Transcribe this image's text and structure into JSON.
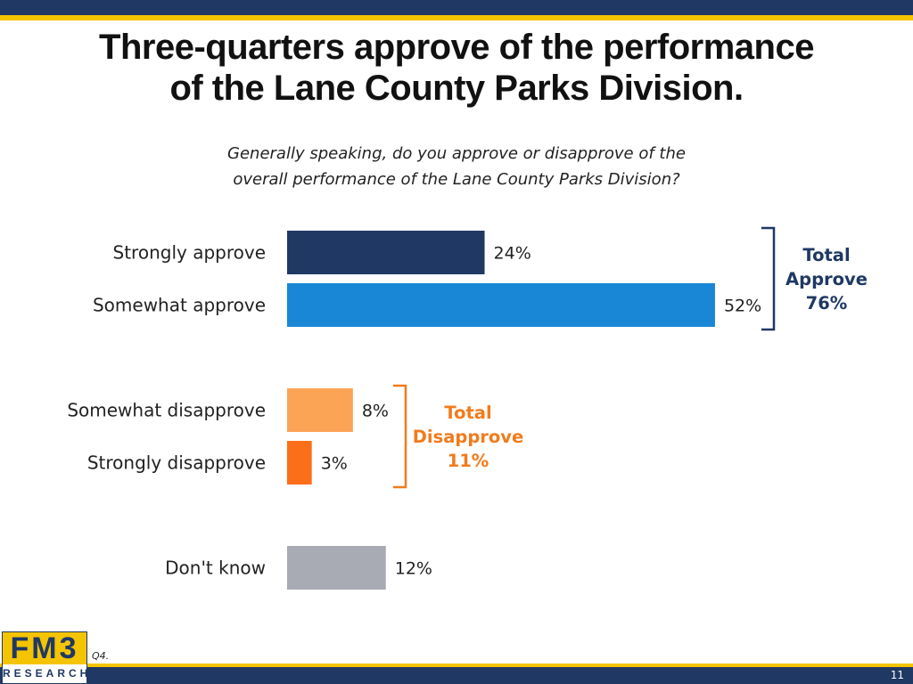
{
  "title": {
    "line1": "Three-quarters approve of the performance",
    "line2": "of the Lane County Parks Division."
  },
  "question": {
    "line1": "Generally speaking, do you approve or disapprove of the",
    "line2": "overall performance of the Lane County Parks Division?"
  },
  "colors": {
    "brand_navy": "#1f3864",
    "brand_gold": "#f5c400",
    "strongly_approve": "#1f3864",
    "somewhat_approve": "#1a86d6",
    "somewhat_disapprove": "#fca456",
    "strongly_disapprove": "#fb6f1a",
    "dont_know": "#a8abb4",
    "approve_bracket": "#1f3864",
    "disapprove_bracket": "#f27b1c"
  },
  "chart_data": {
    "type": "bar",
    "orientation": "horizontal",
    "categories": [
      "Strongly approve",
      "Somewhat approve",
      "Somewhat disapprove",
      "Strongly disapprove",
      "Don't know"
    ],
    "values": [
      24,
      52,
      8,
      3,
      12
    ],
    "value_labels": [
      "24%",
      "52%",
      "8%",
      "3%",
      "12%"
    ],
    "unit": "%",
    "grid": false,
    "groups": [
      {
        "categories": [
          "Strongly approve",
          "Somewhat approve"
        ],
        "label_line1": "Total",
        "label_line2": "Approve",
        "label_line3": "76%",
        "total": 76
      },
      {
        "categories": [
          "Somewhat disapprove",
          "Strongly disapprove"
        ],
        "label_line1": "Total",
        "label_line2": "Disapprove",
        "label_line3": "11%",
        "total": 11
      }
    ]
  },
  "footer": {
    "logo_top": "FM3",
    "logo_bottom": "RESEARCH",
    "question_ref": "Q4.",
    "page_number": "11"
  }
}
